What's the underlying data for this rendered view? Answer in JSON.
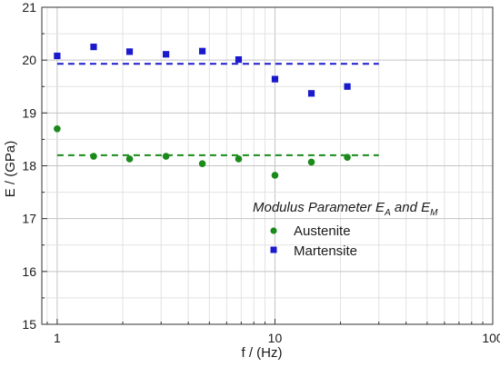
{
  "chart_data": {
    "type": "scatter",
    "xlabel": "f / (Hz)",
    "ylabel_main": "E",
    "ylabel_rest": " / (GPa)",
    "xscale": "log",
    "xlim": [
      0.85,
      100
    ],
    "ylim": [
      15,
      21
    ],
    "x_ticks": [
      {
        "value": 1,
        "label": "1"
      },
      {
        "value": 10,
        "label": "10"
      },
      {
        "value": 100,
        "label": "100"
      }
    ],
    "y_ticks": [
      {
        "value": 15,
        "label": "15"
      },
      {
        "value": 16,
        "label": "16"
      },
      {
        "value": 17,
        "label": "17"
      },
      {
        "value": 18,
        "label": "18"
      },
      {
        "value": 19,
        "label": "19"
      },
      {
        "value": 20,
        "label": "20"
      },
      {
        "value": 21,
        "label": "21"
      }
    ],
    "grid": true,
    "series": [
      {
        "name": "Austenite",
        "marker": "circle",
        "color": "#1a8a1a",
        "points": [
          {
            "x": 1.0,
            "y": 18.7
          },
          {
            "x": 1.47,
            "y": 18.18
          },
          {
            "x": 2.15,
            "y": 18.13
          },
          {
            "x": 3.16,
            "y": 18.18
          },
          {
            "x": 4.64,
            "y": 18.04
          },
          {
            "x": 6.81,
            "y": 18.13
          },
          {
            "x": 10.0,
            "y": 17.82
          },
          {
            "x": 14.7,
            "y": 18.07
          },
          {
            "x": 21.5,
            "y": 18.16
          }
        ],
        "mean_line": {
          "y": 18.2,
          "x_from": 1.0,
          "x_to": 30.0
        }
      },
      {
        "name": "Martensite",
        "marker": "square",
        "color": "#1a1acc",
        "points": [
          {
            "x": 1.0,
            "y": 20.08
          },
          {
            "x": 1.47,
            "y": 20.25
          },
          {
            "x": 2.15,
            "y": 20.16
          },
          {
            "x": 3.16,
            "y": 20.11
          },
          {
            "x": 4.64,
            "y": 20.17
          },
          {
            "x": 6.81,
            "y": 20.01
          },
          {
            "x": 10.0,
            "y": 19.64
          },
          {
            "x": 14.7,
            "y": 19.37
          },
          {
            "x": 21.5,
            "y": 19.5
          }
        ],
        "mean_line": {
          "y": 19.93,
          "x_from": 1.0,
          "x_to": 30.0
        }
      }
    ],
    "legend": {
      "title_main": "Modulus Parameter E",
      "title_sub1": "A",
      "title_mid": " and E",
      "title_sub2": "M",
      "placement": "lower-right"
    }
  }
}
